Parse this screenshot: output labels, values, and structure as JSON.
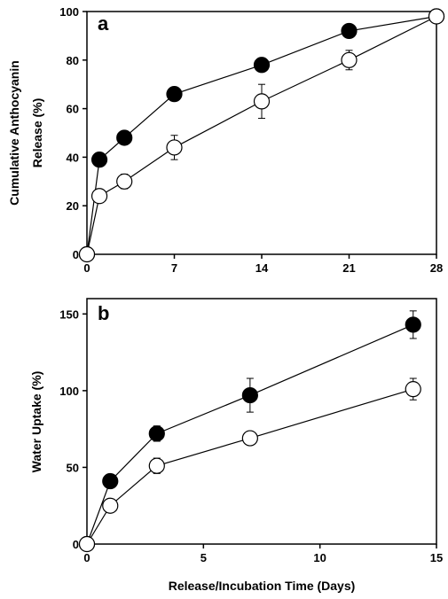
{
  "chart_data": [
    {
      "panel": "a",
      "type": "line",
      "ylabel_lines": [
        "Cumulative Anthocyanin",
        "Release (%)"
      ],
      "xlabel": "",
      "xlim": [
        0,
        28
      ],
      "ylim": [
        0,
        100
      ],
      "xticks": [
        0,
        7,
        14,
        21,
        28
      ],
      "yticks": [
        0,
        20,
        40,
        60,
        80,
        100
      ],
      "grid": false,
      "series": [
        {
          "marker": "filled",
          "x": [
            0,
            1,
            3,
            7,
            14,
            21,
            28
          ],
          "y": [
            0,
            39,
            48,
            66,
            78,
            92,
            98
          ],
          "err": [
            0,
            0,
            0,
            0,
            0,
            0,
            0
          ]
        },
        {
          "marker": "open",
          "x": [
            0,
            1,
            3,
            7,
            14,
            21,
            28
          ],
          "y": [
            0,
            24,
            30,
            44,
            63,
            80,
            98
          ],
          "err": [
            0,
            0,
            3,
            5,
            7,
            4,
            0
          ]
        }
      ]
    },
    {
      "panel": "b",
      "type": "line",
      "ylabel_lines": [
        "Water Uptake (%)"
      ],
      "xlabel": "Release/Incubation Time (Days)",
      "xlim": [
        0,
        15
      ],
      "ylim": [
        0,
        160
      ],
      "xticks": [
        0,
        5,
        10,
        15
      ],
      "yticks": [
        0,
        50,
        100,
        150
      ],
      "grid": false,
      "series": [
        {
          "marker": "filled",
          "x": [
            0,
            1,
            3,
            7,
            14
          ],
          "y": [
            0,
            41,
            72,
            97,
            143
          ],
          "err": [
            0,
            0,
            5,
            11,
            9
          ]
        },
        {
          "marker": "open",
          "x": [
            0,
            1,
            3,
            7,
            14
          ],
          "y": [
            0,
            25,
            51,
            69,
            101
          ],
          "err": [
            0,
            0,
            5,
            0,
            7
          ]
        }
      ]
    }
  ]
}
